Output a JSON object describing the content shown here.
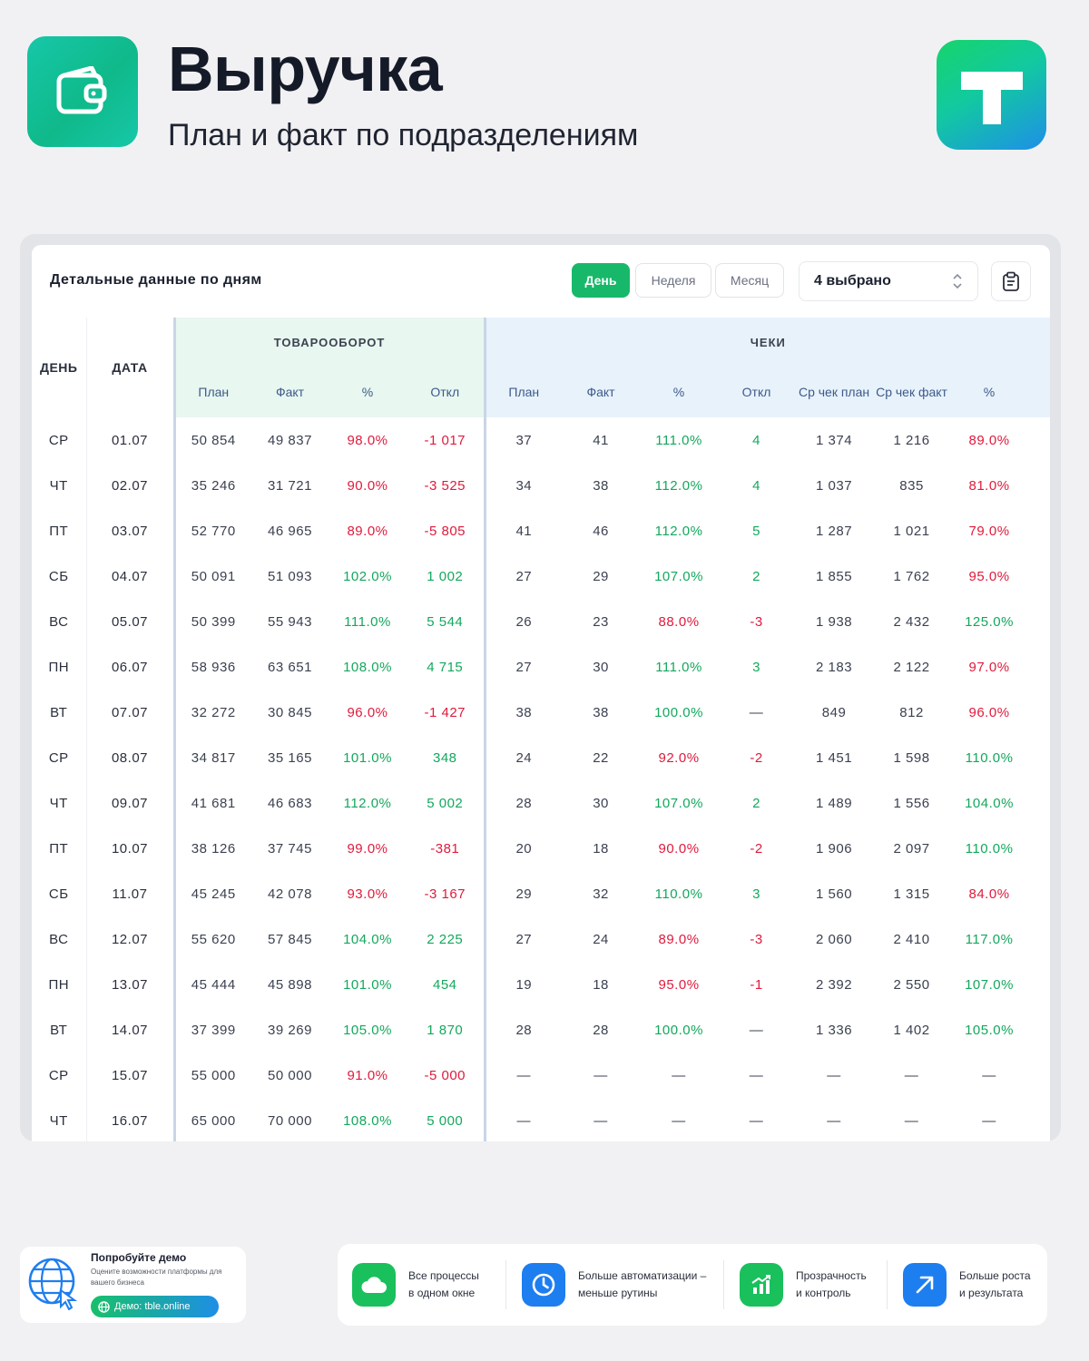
{
  "header": {
    "title": "Выручка",
    "subtitle": "План и факт по подразделениям"
  },
  "card": {
    "title": "Детальные данные по дням",
    "period_tabs": [
      {
        "label": "День",
        "active": true
      },
      {
        "label": "Неделя",
        "active": false
      },
      {
        "label": "Месяц",
        "active": false
      }
    ],
    "filter_select": "4 выбрано"
  },
  "table": {
    "col_day": "ДЕНЬ",
    "col_date": "ДАТА",
    "group_turnover": "ТОВАРООБОРОТ",
    "group_checks": "ЧЕКИ",
    "turnover_cols": [
      "План",
      "Факт",
      "%",
      "Откл"
    ],
    "checks_cols": [
      "План",
      "Факт",
      "%",
      "Откл",
      "Ср чек план",
      "Ср чек факт",
      "%"
    ],
    "rows": [
      {
        "day": "СР",
        "date": "01.07",
        "t": [
          "50 854",
          "49 837",
          "98.0%",
          "-1 017"
        ],
        "c": [
          "37",
          "41",
          "111.0%",
          "4",
          "1 374",
          "1 216",
          "89.0%"
        ]
      },
      {
        "day": "ЧТ",
        "date": "02.07",
        "t": [
          "35 246",
          "31 721",
          "90.0%",
          "-3 525"
        ],
        "c": [
          "34",
          "38",
          "112.0%",
          "4",
          "1 037",
          "835",
          "81.0%"
        ]
      },
      {
        "day": "ПТ",
        "date": "03.07",
        "t": [
          "52 770",
          "46 965",
          "89.0%",
          "-5 805"
        ],
        "c": [
          "41",
          "46",
          "112.0%",
          "5",
          "1 287",
          "1 021",
          "79.0%"
        ]
      },
      {
        "day": "СБ",
        "date": "04.07",
        "t": [
          "50 091",
          "51 093",
          "102.0%",
          "1 002"
        ],
        "c": [
          "27",
          "29",
          "107.0%",
          "2",
          "1 855",
          "1 762",
          "95.0%"
        ]
      },
      {
        "day": "ВС",
        "date": "05.07",
        "t": [
          "50 399",
          "55 943",
          "111.0%",
          "5 544"
        ],
        "c": [
          "26",
          "23",
          "88.0%",
          "-3",
          "1 938",
          "2 432",
          "125.0%"
        ]
      },
      {
        "day": "ПН",
        "date": "06.07",
        "t": [
          "58 936",
          "63 651",
          "108.0%",
          "4 715"
        ],
        "c": [
          "27",
          "30",
          "111.0%",
          "3",
          "2 183",
          "2 122",
          "97.0%"
        ]
      },
      {
        "day": "ВТ",
        "date": "07.07",
        "t": [
          "32 272",
          "30 845",
          "96.0%",
          "-1 427"
        ],
        "c": [
          "38",
          "38",
          "100.0%",
          "—",
          "849",
          "812",
          "96.0%"
        ]
      },
      {
        "day": "СР",
        "date": "08.07",
        "t": [
          "34 817",
          "35 165",
          "101.0%",
          "348"
        ],
        "c": [
          "24",
          "22",
          "92.0%",
          "-2",
          "1 451",
          "1 598",
          "110.0%"
        ]
      },
      {
        "day": "ЧТ",
        "date": "09.07",
        "t": [
          "41 681",
          "46 683",
          "112.0%",
          "5 002"
        ],
        "c": [
          "28",
          "30",
          "107.0%",
          "2",
          "1 489",
          "1 556",
          "104.0%"
        ]
      },
      {
        "day": "ПТ",
        "date": "10.07",
        "t": [
          "38 126",
          "37 745",
          "99.0%",
          "-381"
        ],
        "c": [
          "20",
          "18",
          "90.0%",
          "-2",
          "1 906",
          "2 097",
          "110.0%"
        ]
      },
      {
        "day": "СБ",
        "date": "11.07",
        "t": [
          "45 245",
          "42 078",
          "93.0%",
          "-3 167"
        ],
        "c": [
          "29",
          "32",
          "110.0%",
          "3",
          "1 560",
          "1 315",
          "84.0%"
        ]
      },
      {
        "day": "ВС",
        "date": "12.07",
        "t": [
          "55 620",
          "57 845",
          "104.0%",
          "2 225"
        ],
        "c": [
          "27",
          "24",
          "89.0%",
          "-3",
          "2 060",
          "2 410",
          "117.0%"
        ]
      },
      {
        "day": "ПН",
        "date": "13.07",
        "t": [
          "45 444",
          "45 898",
          "101.0%",
          "454"
        ],
        "c": [
          "19",
          "18",
          "95.0%",
          "-1",
          "2 392",
          "2 550",
          "107.0%"
        ]
      },
      {
        "day": "ВТ",
        "date": "14.07",
        "t": [
          "37 399",
          "39 269",
          "105.0%",
          "1 870"
        ],
        "c": [
          "28",
          "28",
          "100.0%",
          "—",
          "1 336",
          "1 402",
          "105.0%"
        ]
      },
      {
        "day": "СР",
        "date": "15.07",
        "t": [
          "55 000",
          "50 000",
          "91.0%",
          "-5 000"
        ],
        "c": [
          "—",
          "—",
          "—",
          "—",
          "—",
          "—",
          "—"
        ]
      },
      {
        "day": "ЧТ",
        "date": "16.07",
        "t": [
          "65 000",
          "70 000",
          "108.0%",
          "5 000"
        ],
        "c": [
          "—",
          "—",
          "—",
          "—",
          "—",
          "—",
          "—"
        ]
      }
    ]
  },
  "demo": {
    "title": "Попробуйте демо",
    "subtitle": "Оцените возможности платформы для вашего бизнеса",
    "button": "Демо: tble.online"
  },
  "features": [
    {
      "icon": "cloud-icon",
      "color": "#19c05c",
      "text": "Все процессы\nв одном окне"
    },
    {
      "icon": "clock-icon",
      "color": "#1d7ef0",
      "text": "Больше автоматизации –\nменьше рутины"
    },
    {
      "icon": "chart-growth-icon",
      "color": "#19c05c",
      "text": "Прозрачность\nи контроль"
    },
    {
      "icon": "arrow-up-right-icon",
      "color": "#1d7ef0",
      "text": "Больше роста\nи результата"
    }
  ],
  "colors": {
    "positive": "#13a85c",
    "negative": "#e01a3c",
    "accent_green": "#18b86a",
    "turnover_header_bg": "#e8f7f0",
    "checks_header_bg": "#e8f2fb"
  }
}
